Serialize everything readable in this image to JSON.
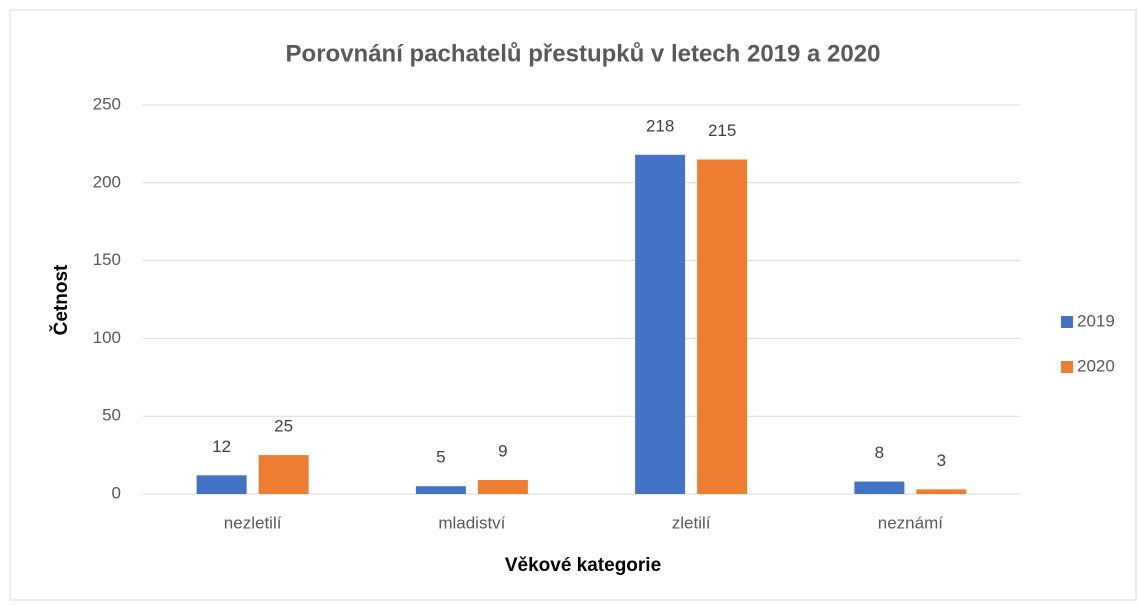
{
  "chart_data": {
    "type": "bar",
    "title": "Porovnání pachatelů přestupků v letech 2019 a 2020",
    "xlabel": "Věkové kategorie",
    "ylabel": "Četnost",
    "categories": [
      "nezletilí",
      "mladiství",
      "zletilí",
      "neznámí"
    ],
    "series": [
      {
        "name": "2019",
        "color": "#4472c4",
        "values": [
          12,
          5,
          218,
          8
        ]
      },
      {
        "name": "2020",
        "color": "#ed7d31",
        "values": [
          25,
          9,
          215,
          3
        ]
      }
    ],
    "ylim": [
      0,
      250
    ],
    "yticks": [
      0,
      50,
      100,
      150,
      200,
      250
    ],
    "grid": true,
    "legend": "right"
  }
}
